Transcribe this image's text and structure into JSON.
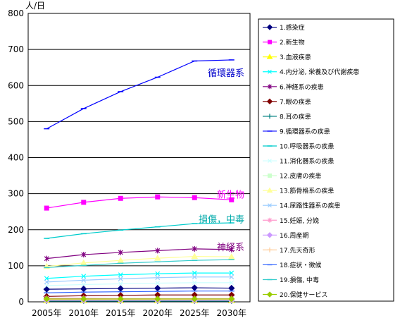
{
  "chart_data": {
    "type": "line",
    "title": "",
    "ylabel": "人/日",
    "xlabel": "",
    "ylim": [
      0,
      800
    ],
    "yticks": [
      "0",
      "100",
      "200",
      "300",
      "400",
      "500",
      "600",
      "700",
      "800"
    ],
    "categories": [
      "2005年",
      "2010年",
      "2015年",
      "2020年",
      "2025年",
      "2030年"
    ],
    "grid": true,
    "legend_position": "right",
    "series": [
      {
        "name": "1.感染症",
        "color": "#000080",
        "marker": "diamond",
        "values": [
          35,
          36,
          37,
          38,
          39,
          38
        ]
      },
      {
        "name": "2.新生物",
        "color": "#ff00ff",
        "marker": "square",
        "values": [
          260,
          276,
          287,
          291,
          289,
          283
        ]
      },
      {
        "name": "3.血液疾患",
        "color": "#ffff00",
        "marker": "triangle",
        "values": [
          3,
          3,
          3,
          3,
          3,
          3
        ]
      },
      {
        "name": "4.内分泌, 栄養及び代謝疾患",
        "color": "#00ffff",
        "marker": "x",
        "values": [
          65,
          71,
          75,
          78,
          80,
          80
        ]
      },
      {
        "name": "6.神経系の疾患",
        "color": "#800080",
        "marker": "star",
        "values": [
          120,
          131,
          137,
          142,
          147,
          145
        ]
      },
      {
        "name": "7.眼の疾患",
        "color": "#800000",
        "marker": "diamond",
        "values": [
          15,
          17,
          18,
          19,
          19,
          19
        ]
      },
      {
        "name": "8.耳の疾患",
        "color": "#008080",
        "marker": "plus",
        "values": [
          2,
          2,
          2,
          2,
          2,
          2
        ]
      },
      {
        "name": "9.循環器系の疾患",
        "color": "#0000ff",
        "marker": "dash",
        "values": [
          480,
          536,
          583,
          623,
          668,
          671
        ]
      },
      {
        "name": "10.呼吸器系の疾患",
        "color": "#00cccc",
        "marker": "dash",
        "values": [
          176,
          189,
          199,
          208,
          217,
          219
        ]
      },
      {
        "name": "11.消化器系の疾患",
        "color": "#ccffff",
        "marker": "x",
        "values": [
          45,
          48,
          50,
          52,
          53,
          53
        ]
      },
      {
        "name": "12.皮膚の疾患",
        "color": "#ccffcc",
        "marker": "square",
        "values": [
          5,
          5,
          5,
          5,
          5,
          5
        ]
      },
      {
        "name": "13.筋骨格系の疾患",
        "color": "#ffff99",
        "marker": "triangle",
        "values": [
          98,
          108,
          115,
          121,
          126,
          125
        ]
      },
      {
        "name": "14.尿路性器系の疾患",
        "color": "#99ccff",
        "marker": "x",
        "values": [
          55,
          60,
          64,
          67,
          69,
          69
        ]
      },
      {
        "name": "15.妊娠, 分娩",
        "color": "#ff99cc",
        "marker": "star",
        "values": [
          10,
          10,
          9,
          9,
          9,
          9
        ]
      },
      {
        "name": "16.周産期",
        "color": "#cc99ff",
        "marker": "diamond",
        "values": [
          4,
          4,
          4,
          4,
          4,
          4
        ]
      },
      {
        "name": "17.先天奇形",
        "color": "#ffcc99",
        "marker": "plus",
        "values": [
          6,
          6,
          6,
          6,
          6,
          6
        ]
      },
      {
        "name": "18.症状・徴候",
        "color": "#3366ff",
        "marker": "dash",
        "values": [
          25,
          27,
          28,
          29,
          30,
          30
        ]
      },
      {
        "name": "19.損傷, 中毒",
        "color": "#33cccc",
        "marker": "dash",
        "values": [
          95,
          101,
          107,
          111,
          115,
          117
        ]
      },
      {
        "name": "20.保健サービス",
        "color": "#99cc00",
        "marker": "diamond",
        "values": [
          8,
          8,
          8,
          8,
          8,
          8
        ]
      }
    ],
    "annotations": [
      {
        "text": "循環器系",
        "color": "#0000cc",
        "value": 636
      },
      {
        "text": "新生物",
        "color": "#ff00ff",
        "value": 298
      },
      {
        "text": "損傷，中毒",
        "color": "#00aaaa",
        "value": 230
      },
      {
        "text": "神経系",
        "color": "#800080",
        "value": 153
      }
    ]
  }
}
